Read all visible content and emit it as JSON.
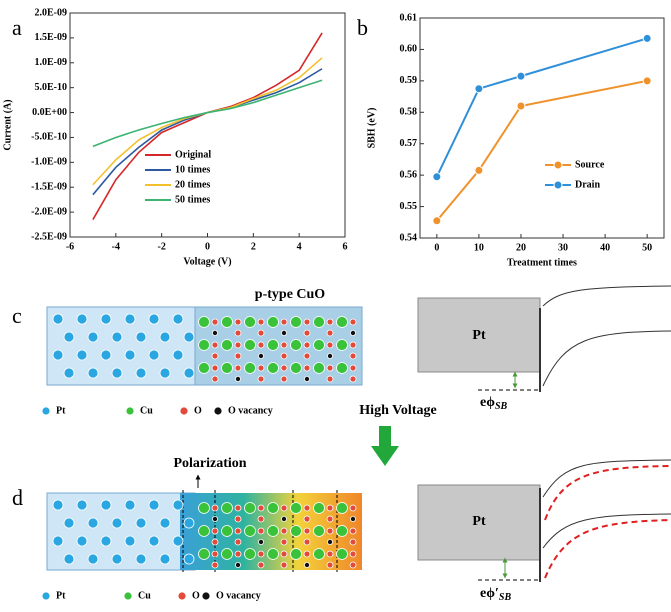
{
  "chart_data": [
    {
      "type": "line",
      "panel": "a",
      "xlabel": "Voltage (V)",
      "ylabel": "Current (A)",
      "x": [
        -5,
        -4,
        -3,
        -2,
        -1,
        0,
        1,
        2,
        3,
        4,
        5
      ],
      "series": [
        {
          "name": "Original",
          "color": "#d62728",
          "values": [
            -2.15e-09,
            -1.35e-09,
            -8e-10,
            -4e-10,
            -2e-10,
            0,
            1.2e-10,
            3e-10,
            5.5e-10,
            8.5e-10,
            1.6e-09
          ]
        },
        {
          "name": "10 times",
          "color": "#2c5aa0",
          "values": [
            -1.65e-09,
            -1.1e-09,
            -7e-10,
            -3.5e-10,
            -1.5e-10,
            0,
            1e-10,
            2.5e-10,
            4e-10,
            6e-10,
            8.8e-10
          ]
        },
        {
          "name": "20 times",
          "color": "#f2c12e",
          "values": [
            -1.45e-09,
            -9.5e-10,
            -5.5e-10,
            -3e-10,
            -1.2e-10,
            0,
            1e-10,
            2.8e-10,
            4.5e-10,
            7e-10,
            1.1e-09
          ]
        },
        {
          "name": "50 times",
          "color": "#3cb371",
          "values": [
            -6.8e-10,
            -5e-10,
            -3.5e-10,
            -2.2e-10,
            -1e-10,
            0,
            8e-11,
            2e-10,
            3.5e-10,
            5e-10,
            6.5e-10
          ]
        }
      ],
      "xlim": [
        -6,
        6
      ],
      "xticks": [
        -6,
        -4,
        -2,
        0,
        2,
        4,
        6
      ],
      "ylim": [
        -2.5e-09,
        2e-09
      ],
      "yticks": [
        {
          "value": -2.5e-09,
          "label": "-2.5E-09"
        },
        {
          "value": -2e-09,
          "label": "-2.0E-09"
        },
        {
          "value": -1.5e-09,
          "label": "-1.5E-09"
        },
        {
          "value": -1e-09,
          "label": "-1.0E-09"
        },
        {
          "value": -5e-10,
          "label": "-5.0E-10"
        },
        {
          "value": 0,
          "label": "0.0E+00"
        },
        {
          "value": 5e-10,
          "label": "5.0E-10"
        },
        {
          "value": 1e-09,
          "label": "1.0E-09"
        },
        {
          "value": 1.5e-09,
          "label": "1.5E-09"
        },
        {
          "value": 2e-09,
          "label": "2.0E-09"
        }
      ],
      "legend": "lower right"
    },
    {
      "type": "line",
      "panel": "b",
      "xlabel": "Treatment times",
      "ylabel": "SBH (eV)",
      "x": [
        0,
        10,
        20,
        50
      ],
      "series": [
        {
          "name": "Source",
          "color": "#f0922b",
          "values": [
            0.5455,
            0.5615,
            0.582,
            0.59
          ]
        },
        {
          "name": "Drain",
          "color": "#2f8fd8",
          "values": [
            0.5595,
            0.5875,
            0.5915,
            0.6035
          ]
        }
      ],
      "xlim": [
        -4,
        54
      ],
      "xticks": [
        0,
        10,
        20,
        30,
        40,
        50
      ],
      "ylim": [
        0.54,
        0.61
      ],
      "yticks": [
        0.54,
        0.55,
        0.56,
        0.57,
        0.58,
        0.59,
        {
          "value": 0.6,
          "label": "0.60"
        },
        0.61
      ],
      "legend": "lower right",
      "markers": true
    }
  ],
  "diagrams": {
    "c": {
      "panel": "c",
      "title": "p-type CuO",
      "legend": [
        "Pt",
        "Cu",
        "O",
        "O vacancy"
      ],
      "metal": "Pt",
      "barrier": "eϕ",
      "barrier_sub": "SB"
    },
    "arrow": "High Voltage",
    "d": {
      "panel": "d",
      "title": "Polarization",
      "legend": [
        "Pt",
        "Cu",
        "O",
        "O vacancy"
      ],
      "metal": "Pt",
      "barrier": "eϕ′",
      "barrier_sub": "SB"
    }
  }
}
